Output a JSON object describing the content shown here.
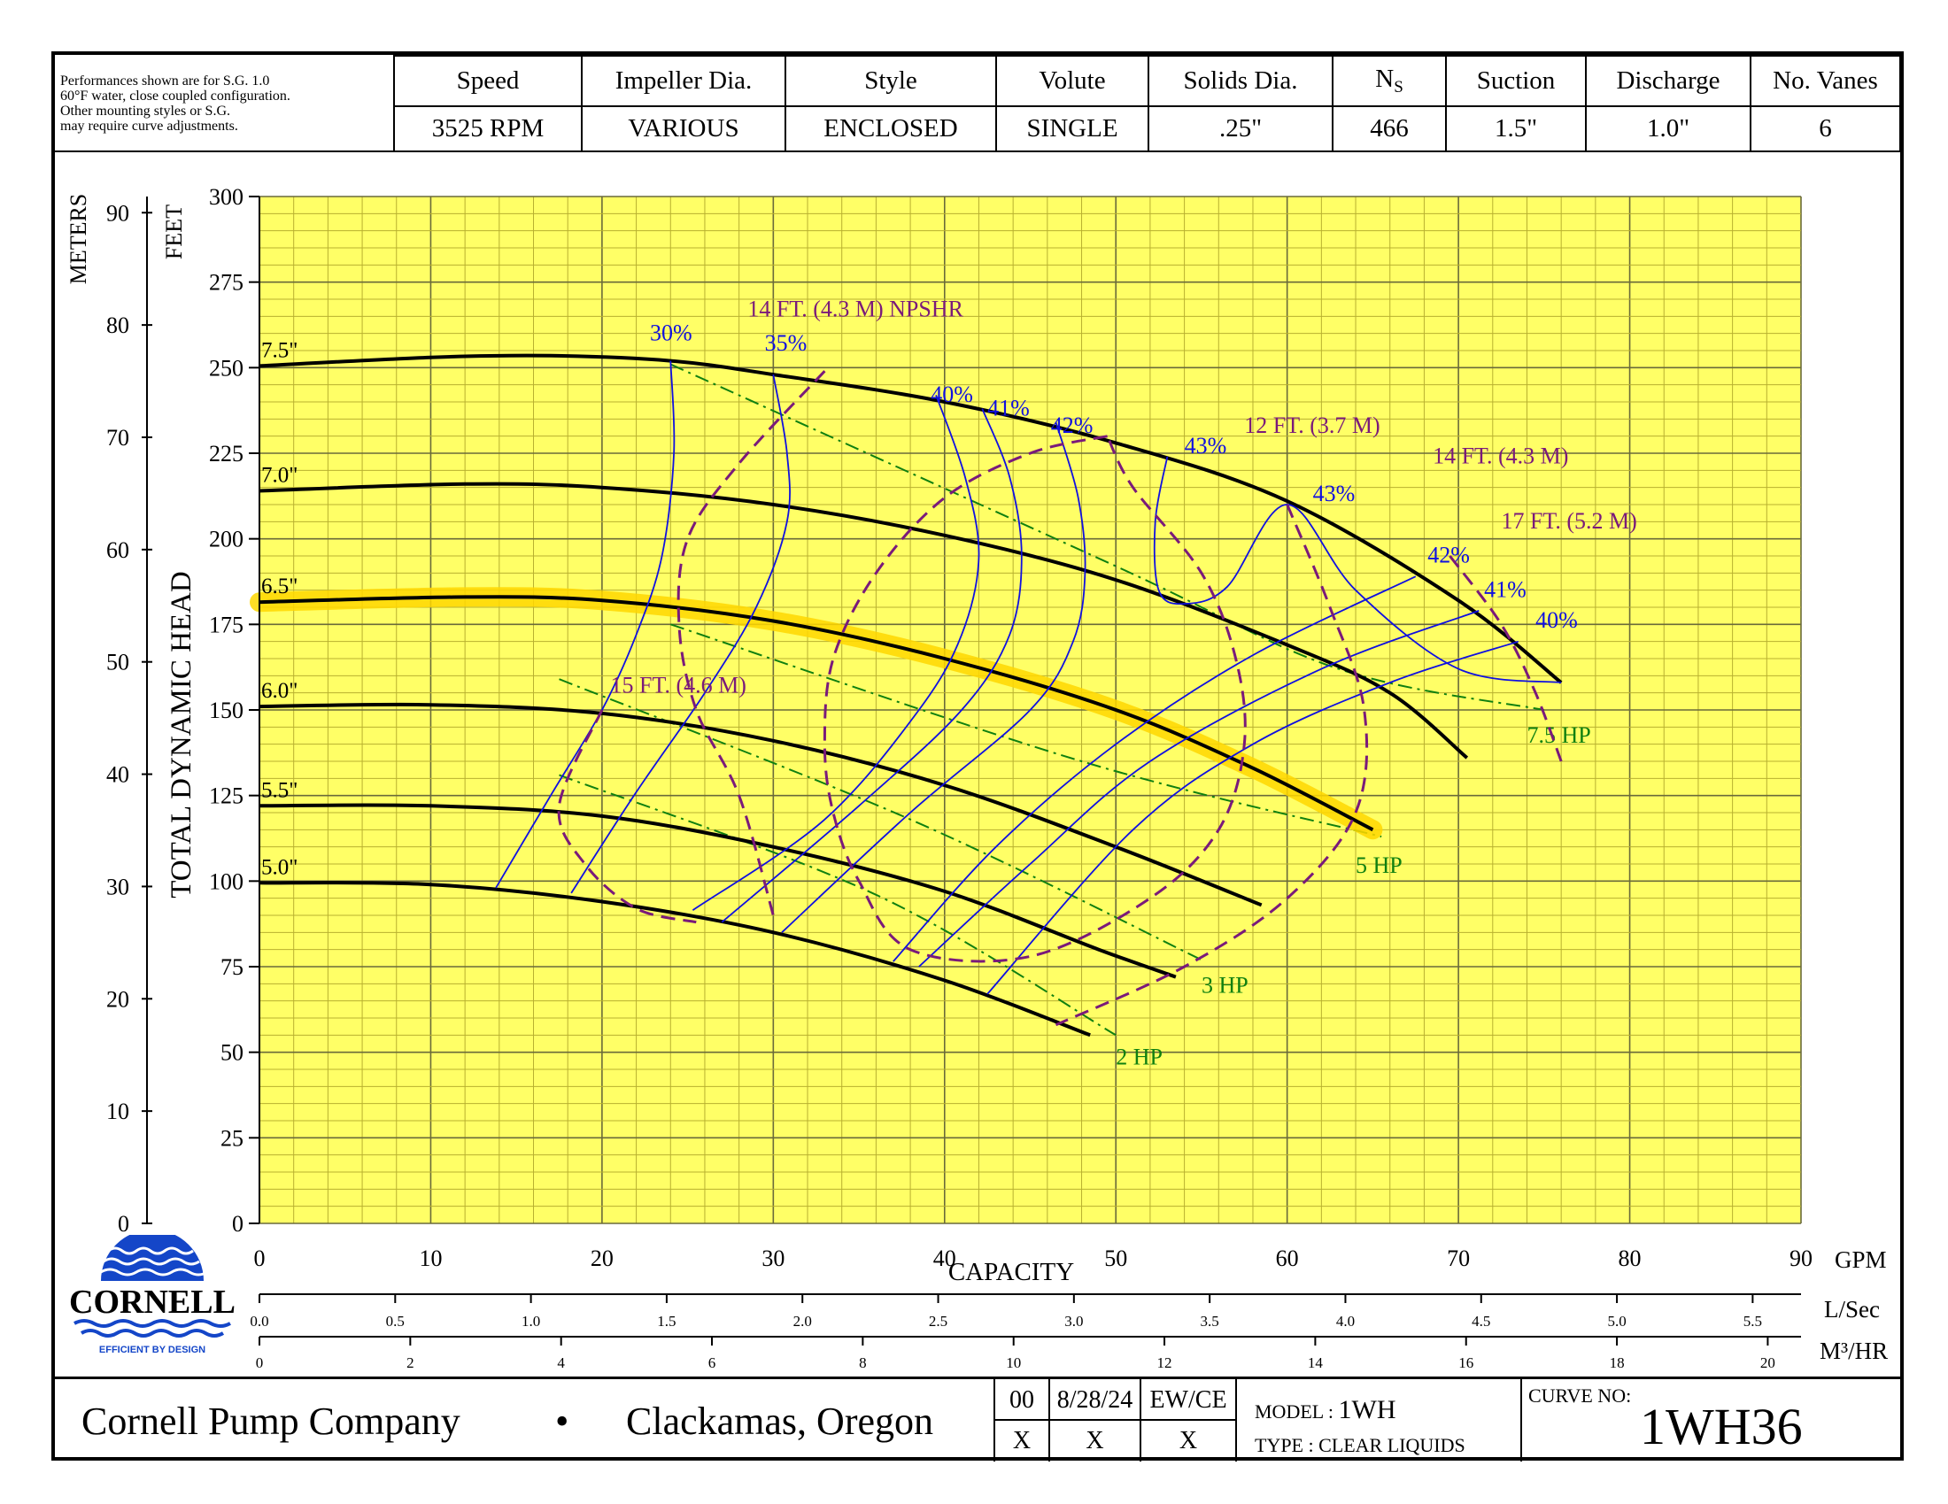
{
  "header": {
    "note_lines": [
      "Performances shown are for S.G. 1.0",
      "60°F water, close coupled configuration.",
      "Other mounting styles or S.G.",
      "may require curve adjustments."
    ],
    "columns": [
      {
        "label": "Speed",
        "value": "3525 RPM"
      },
      {
        "label": "Impeller Dia.",
        "value": "VARIOUS"
      },
      {
        "label": "Style",
        "value": "ENCLOSED"
      },
      {
        "label": "Volute",
        "value": "SINGLE"
      },
      {
        "label": "Solids Dia.",
        "value": ".25\""
      },
      {
        "label": "N",
        "sub": "S",
        "value": "466"
      },
      {
        "label": "Suction",
        "value": "1.5\""
      },
      {
        "label": "Discharge",
        "value": "1.0\""
      },
      {
        "label": "No. Vanes",
        "value": "6"
      }
    ]
  },
  "footer": {
    "company": "Cornell Pump Company",
    "bullet": "•",
    "city": "Clackamas, Oregon",
    "rev": "00",
    "date": "8/28/24",
    "initials": "EW/CE",
    "marks": [
      "X",
      "X",
      "X"
    ],
    "model_label": "MODEL :",
    "model": "1WH",
    "type": "TYPE : CLEAR LIQUIDS",
    "curve_label": "CURVE NO:",
    "curve_no": "1WH36"
  },
  "logo": {
    "name": "CORNELL",
    "tagline": "EFFICIENT BY DESIGN",
    "color": "#1446c8"
  },
  "chart_data": {
    "type": "line",
    "colors": {
      "background": "#ffff66",
      "grid": "#b8b030",
      "grid_major": "#6a6a3a",
      "impeller": "#000000",
      "highlight": "#ffd700",
      "efficiency": "#1010e0",
      "npshr": "#7a1a7a",
      "hp": "#108010"
    },
    "x_axis": {
      "label": "CAPACITY",
      "unit": "GPM",
      "range": [
        0,
        90
      ],
      "ticks": [
        0,
        10,
        20,
        30,
        40,
        50,
        60,
        70,
        80,
        90
      ]
    },
    "y_axis": {
      "label": "TOTAL DYNAMIC HEAD",
      "unit": "FEET",
      "range": [
        0,
        300
      ],
      "ticks": [
        0,
        25,
        50,
        75,
        100,
        125,
        150,
        175,
        200,
        225,
        250,
        275,
        300
      ]
    },
    "y_axis_secondary": {
      "unit": "METERS",
      "ticks": [
        0,
        10,
        20,
        30,
        40,
        50,
        60,
        70,
        80,
        90
      ]
    },
    "x_axis_secondary": [
      {
        "unit": "L/Sec",
        "ticks": [
          "0.0",
          "0.5",
          "1.0",
          "1.5",
          "2.0",
          "2.5",
          "3.0",
          "3.5",
          "4.0",
          "4.5",
          "5.0",
          "5.5"
        ],
        "values": [
          0,
          0.5,
          1,
          1.5,
          2,
          2.5,
          3,
          3.5,
          4,
          4.5,
          5,
          5.5
        ]
      },
      {
        "unit": "M³/HR",
        "ticks": [
          "0",
          "2",
          "4",
          "6",
          "8",
          "10",
          "12",
          "14",
          "16",
          "18",
          "20"
        ],
        "values": [
          0,
          2,
          4,
          6,
          8,
          10,
          12,
          14,
          16,
          18,
          20
        ]
      }
    ],
    "impeller_curves": [
      {
        "name": "7.5\"",
        "points": [
          [
            0,
            250.5
          ],
          [
            10,
            253
          ],
          [
            17,
            253.5
          ],
          [
            24,
            252
          ],
          [
            30,
            248
          ],
          [
            40,
            240
          ],
          [
            50,
            228
          ],
          [
            60,
            211
          ],
          [
            70,
            182
          ],
          [
            76,
            158
          ]
        ]
      },
      {
        "name": "7.0\"",
        "points": [
          [
            0,
            214
          ],
          [
            12,
            216
          ],
          [
            20,
            215
          ],
          [
            30,
            210
          ],
          [
            40,
            201
          ],
          [
            50,
            188
          ],
          [
            60,
            169
          ],
          [
            66,
            155
          ],
          [
            70.5,
            136
          ]
        ]
      },
      {
        "name": "6.5\"",
        "highlighted": true,
        "points": [
          [
            0,
            181.5
          ],
          [
            12,
            183
          ],
          [
            20,
            182
          ],
          [
            30,
            176
          ],
          [
            40,
            165
          ],
          [
            50,
            150
          ],
          [
            58,
            133
          ],
          [
            65,
            115
          ]
        ]
      },
      {
        "name": "6.0\"",
        "points": [
          [
            0,
            151
          ],
          [
            10,
            151.5
          ],
          [
            20,
            149
          ],
          [
            30,
            141
          ],
          [
            40,
            128
          ],
          [
            50,
            110
          ],
          [
            58.5,
            93
          ]
        ]
      },
      {
        "name": "5.5\"",
        "points": [
          [
            0,
            122
          ],
          [
            10,
            122
          ],
          [
            20,
            119
          ],
          [
            30,
            110
          ],
          [
            40,
            97
          ],
          [
            49,
            80
          ],
          [
            53.5,
            72
          ]
        ]
      },
      {
        "name": "5.0\"",
        "points": [
          [
            0,
            99.5
          ],
          [
            10,
            99
          ],
          [
            20,
            94
          ],
          [
            30,
            85
          ],
          [
            40,
            71
          ],
          [
            48.5,
            55
          ]
        ]
      }
    ],
    "efficiency_curves": [
      {
        "label": "30%",
        "label_at": [
          22.8,
          258
        ],
        "points": [
          [
            24,
            252
          ],
          [
            24.2,
            225
          ],
          [
            23.5,
            195
          ],
          [
            22,
            172
          ],
          [
            20,
            150
          ],
          [
            17,
            125
          ],
          [
            13.8,
            98
          ]
        ]
      },
      {
        "label": "35%",
        "label_at": [
          29.5,
          255
        ],
        "points": [
          [
            30,
            248
          ],
          [
            30.8,
            225
          ],
          [
            30.8,
            205
          ],
          [
            29,
            180
          ],
          [
            26,
            155
          ],
          [
            22,
            126
          ],
          [
            18.2,
            96.5
          ]
        ]
      },
      {
        "label": "40%",
        "label_at": [
          39.2,
          240
        ],
        "points": [
          [
            39.5,
            242
          ],
          [
            41.2,
            218
          ],
          [
            42,
            195
          ],
          [
            41,
            172
          ],
          [
            38.5,
            150
          ],
          [
            33,
            118
          ],
          [
            25.3,
            91.5
          ]
        ]
      },
      {
        "label": "41%",
        "label_at": [
          42.5,
          236
        ],
        "points": [
          [
            42.2,
            238
          ],
          [
            43.8,
            218
          ],
          [
            44.5,
            195
          ],
          [
            43.8,
            172
          ],
          [
            41,
            150
          ],
          [
            35,
            122
          ],
          [
            27,
            88
          ]
        ]
      },
      {
        "label": "42%",
        "label_at": [
          46.2,
          231
        ],
        "points": [
          [
            46.5,
            234
          ],
          [
            47.8,
            212
          ],
          [
            48.2,
            190
          ],
          [
            47.5,
            170
          ],
          [
            45,
            150
          ],
          [
            38,
            120
          ],
          [
            30.5,
            85
          ]
        ]
      },
      {
        "label": "43%",
        "label_at": [
          54,
          225
        ],
        "points": [
          [
            53,
            224
          ],
          [
            52.3,
            205
          ],
          [
            52.5,
            185
          ],
          [
            54,
            181
          ],
          [
            56.5,
            186
          ],
          [
            60,
            210
          ],
          [
            64,
            185
          ],
          [
            70,
            162
          ],
          [
            76,
            158
          ]
        ]
      },
      {
        "label": "43%",
        "label_at": [
          61.5,
          211
        ],
        "points": []
      },
      {
        "label": "42%",
        "label_at": [
          68.2,
          193
        ],
        "points": [
          [
            67.5,
            189
          ],
          [
            58,
            166
          ],
          [
            50,
            140
          ],
          [
            43,
            110
          ],
          [
            37,
            76.5
          ]
        ]
      },
      {
        "label": "41%",
        "label_at": [
          71.5,
          183
        ],
        "points": [
          [
            71.2,
            179
          ],
          [
            62,
            162
          ],
          [
            52,
            135
          ],
          [
            45,
            105
          ],
          [
            38.5,
            75
          ]
        ]
      },
      {
        "label": "40%",
        "label_at": [
          74.5,
          174
        ],
        "points": [
          [
            73.5,
            170
          ],
          [
            66,
            158
          ],
          [
            58,
            140
          ],
          [
            51,
            115
          ],
          [
            42.5,
            67
          ]
        ]
      }
    ],
    "npshr_curves": [
      {
        "label": "14 FT. (4.3 M) NPSHR",
        "label_at": [
          28.5,
          265
        ],
        "points": [
          [
            33,
            249
          ],
          [
            28,
            222
          ],
          [
            25,
            200
          ],
          [
            24.5,
            175
          ],
          [
            25.5,
            150
          ],
          [
            28,
            125
          ],
          [
            30,
            90
          ]
        ]
      },
      {
        "label": "12 FT. (3.7 M)",
        "label_at": [
          57.5,
          231
        ],
        "points": [
          [
            49.5,
            230
          ],
          [
            45,
            225
          ],
          [
            40,
            212
          ],
          [
            36,
            190
          ],
          [
            33.5,
            165
          ],
          [
            33,
            140
          ],
          [
            33.5,
            120
          ],
          [
            35,
            100
          ],
          [
            38,
            80
          ],
          [
            45,
            78
          ],
          [
            52,
            95
          ],
          [
            56,
            115
          ],
          [
            57.5,
            140
          ],
          [
            57,
            165
          ],
          [
            55,
            190
          ],
          [
            51,
            215
          ],
          [
            49.5,
            230
          ]
        ]
      },
      {
        "label": "14 FT. (4.3 M)",
        "label_at": [
          68.5,
          222
        ],
        "points": [
          [
            60,
            210
          ],
          [
            62.5,
            180
          ],
          [
            64.5,
            150
          ],
          [
            64,
            120
          ],
          [
            60,
            95
          ],
          [
            54,
            75
          ],
          [
            46.5,
            58
          ]
        ]
      },
      {
        "label": "17 FT. (5.2 M)",
        "label_at": [
          72.5,
          203
        ],
        "points": [
          [
            69.5,
            195
          ],
          [
            72.5,
            175
          ],
          [
            74.5,
            155
          ],
          [
            76,
            135
          ]
        ]
      },
      {
        "label": "15 FT. (4.6 M)",
        "label_at": [
          20.5,
          155
        ],
        "points": [
          [
            20,
            150
          ],
          [
            17.5,
            122
          ],
          [
            19,
            105
          ],
          [
            22,
            92
          ],
          [
            25.5,
            88
          ]
        ]
      }
    ],
    "hp_lines": [
      {
        "label": "7.5 HP",
        "label_at": [
          74,
          143
        ],
        "points": [
          [
            24,
            251
          ],
          [
            50,
            192
          ],
          [
            63,
            162
          ],
          [
            75,
            150
          ]
        ]
      },
      {
        "label": "5 HP",
        "label_at": [
          64,
          105
        ],
        "points": [
          [
            24,
            175
          ],
          [
            48,
            135
          ],
          [
            65.5,
            113
          ]
        ]
      },
      {
        "label": "3 HP",
        "label_at": [
          55,
          70
        ],
        "points": [
          [
            17.5,
            159
          ],
          [
            38,
            118
          ],
          [
            55,
            77
          ]
        ]
      },
      {
        "label": "2 HP",
        "label_at": [
          50,
          49
        ],
        "points": [
          [
            17.5,
            131
          ],
          [
            36,
            96
          ],
          [
            50,
            55
          ]
        ]
      }
    ]
  }
}
